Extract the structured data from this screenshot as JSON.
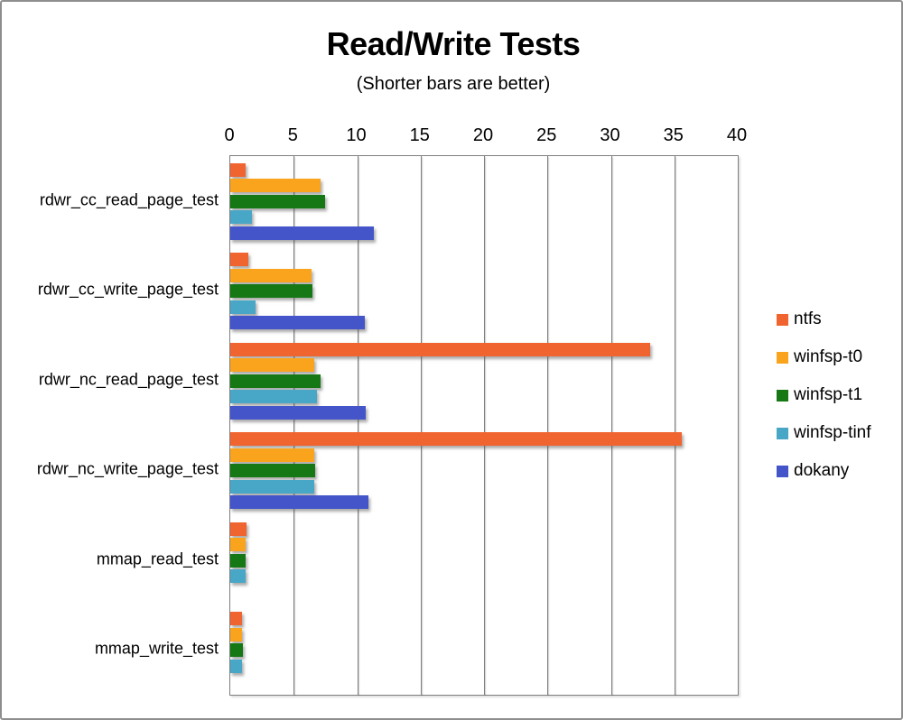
{
  "window": {
    "background": "#ffffff",
    "border_color": "#8e8e8e"
  },
  "chart_data": {
    "type": "bar",
    "orientation": "horizontal",
    "title": "Read/Write Tests",
    "subtitle": "(Shorter bars are better)",
    "axis": {
      "position": "top",
      "min": 0,
      "max": 40,
      "tick_step": 5,
      "ticks": [
        0,
        5,
        10,
        15,
        20,
        25,
        30,
        35,
        40
      ]
    },
    "grid": true,
    "gridline_color": "#7f7f7f",
    "categories": [
      "rdwr_cc_read_page_test",
      "rdwr_cc_write_page_test",
      "rdwr_nc_read_page_test",
      "rdwr_nc_write_page_test",
      "mmap_read_test",
      "mmap_write_test"
    ],
    "series": [
      {
        "name": "ntfs",
        "color": "#F0642F",
        "values": [
          1.2,
          1.4,
          33.1,
          35.6,
          1.3,
          0.9
        ]
      },
      {
        "name": "winfsp-t0",
        "color": "#FAA41E",
        "values": [
          7.1,
          6.4,
          6.6,
          6.6,
          1.2,
          0.9
        ]
      },
      {
        "name": "winfsp-t1",
        "color": "#157815",
        "values": [
          7.5,
          6.5,
          7.1,
          6.7,
          1.2,
          1.0
        ]
      },
      {
        "name": "winfsp-tinf",
        "color": "#48A7C6",
        "values": [
          1.7,
          2.0,
          6.8,
          6.6,
          1.2,
          0.9
        ]
      },
      {
        "name": "dokany",
        "color": "#4355C8",
        "values": [
          11.3,
          10.6,
          10.7,
          10.9,
          null,
          null
        ]
      }
    ],
    "legend": {
      "position": "right",
      "entries": [
        "ntfs",
        "winfsp-t0",
        "winfsp-t1",
        "winfsp-tinf",
        "dokany"
      ]
    }
  }
}
